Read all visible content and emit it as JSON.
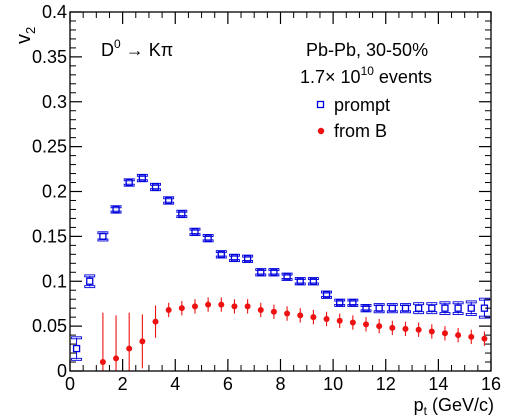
{
  "chart_data": {
    "type": "scatter",
    "xlabel": "p",
    "xlabel_sub": "t",
    "xlabel_unit": " (GeV/c)",
    "ylabel": "v",
    "ylabel_sub": "2",
    "xlim": [
      0,
      16
    ],
    "ylim": [
      0,
      0.4
    ],
    "xticks": [
      0,
      2,
      4,
      6,
      8,
      10,
      12,
      14,
      16
    ],
    "yticks": [
      0,
      0.05,
      0.1,
      0.15,
      0.2,
      0.25,
      0.3,
      0.35,
      0.4
    ],
    "ytick_labels": [
      "0",
      "0.05",
      "0.1",
      "0.15",
      "0.2",
      "0.25",
      "0.3",
      "0.35",
      "0.4"
    ],
    "grid": false,
    "annotations": {
      "decay_prefix": "D",
      "decay_sup": "0",
      "decay_suffix": " → Kπ",
      "system": "Pb-Pb, 30-50%",
      "events_prefix": "1.7× 10",
      "events_sup": "10",
      "events_suffix": " events"
    },
    "legend_position": "top-right",
    "series": [
      {
        "name": "prompt",
        "color": "#0000dd",
        "marker": "open-square",
        "x": [
          0.25,
          0.75,
          1.25,
          1.75,
          2.25,
          2.75,
          3.25,
          3.75,
          4.25,
          4.75,
          5.25,
          5.75,
          6.25,
          6.75,
          7.25,
          7.75,
          8.25,
          8.75,
          9.25,
          9.75,
          10.25,
          10.75,
          11.25,
          11.75,
          12.25,
          12.75,
          13.25,
          13.75,
          14.25,
          14.75,
          15.25,
          15.75
        ],
        "y": [
          0.025,
          0.1,
          0.15,
          0.18,
          0.21,
          0.215,
          0.205,
          0.19,
          0.175,
          0.155,
          0.148,
          0.13,
          0.126,
          0.125,
          0.11,
          0.11,
          0.105,
          0.1,
          0.1,
          0.085,
          0.076,
          0.076,
          0.07,
          0.07,
          0.07,
          0.07,
          0.07,
          0.07,
          0.07,
          0.07,
          0.07,
          0.07
        ],
        "yerr": [
          0.012,
          0.006,
          0.004,
          0.003,
          0.003,
          0.003,
          0.003,
          0.003,
          0.003,
          0.003,
          0.003,
          0.003,
          0.003,
          0.003,
          0.003,
          0.003,
          0.003,
          0.003,
          0.003,
          0.003,
          0.003,
          0.003,
          0.003,
          0.004,
          0.004,
          0.004,
          0.005,
          0.005,
          0.006,
          0.006,
          0.007,
          0.01
        ]
      },
      {
        "name": "from B",
        "color": "#ee1111",
        "marker": "filled-circle",
        "x": [
          1.25,
          1.75,
          2.25,
          2.75,
          3.25,
          3.75,
          4.25,
          4.75,
          5.25,
          5.75,
          6.25,
          6.75,
          7.25,
          7.75,
          8.25,
          8.75,
          9.25,
          9.75,
          10.25,
          10.75,
          11.25,
          11.75,
          12.25,
          12.75,
          13.25,
          13.75,
          14.25,
          14.75,
          15.25,
          15.75
        ],
        "y": [
          0.01,
          0.014,
          0.025,
          0.033,
          0.055,
          0.068,
          0.07,
          0.072,
          0.074,
          0.074,
          0.072,
          0.072,
          0.068,
          0.066,
          0.064,
          0.062,
          0.06,
          0.058,
          0.056,
          0.054,
          0.052,
          0.05,
          0.048,
          0.047,
          0.046,
          0.044,
          0.042,
          0.04,
          0.038,
          0.036
        ]
      }
    ]
  }
}
